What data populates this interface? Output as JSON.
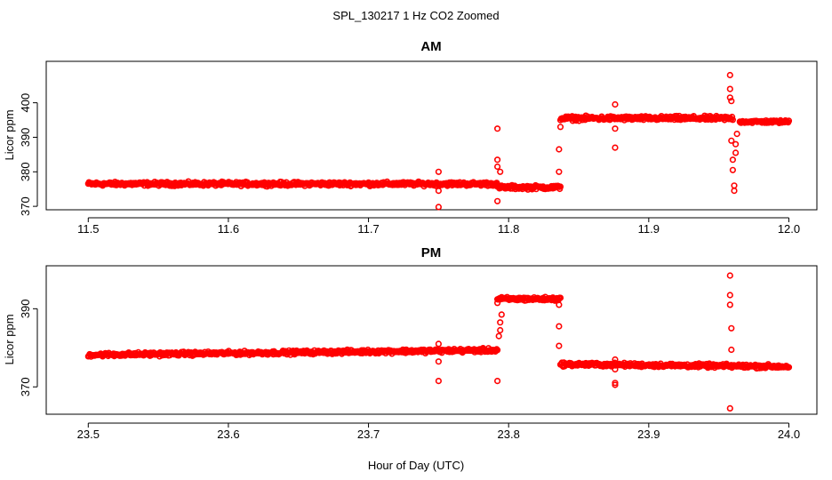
{
  "figure": {
    "suptitle": "SPL_130217  1 Hz CO2 Zoomed",
    "xlabel": "Hour of Day (UTC)"
  },
  "chart_data": [
    {
      "type": "scatter",
      "title": "AM",
      "xlabel": "Hour of Day (UTC)",
      "ylabel": "Licor ppm",
      "xlim": [
        11.47,
        12.02
      ],
      "ylim": [
        369,
        412
      ],
      "xticks": [
        11.5,
        11.6,
        11.7,
        11.8,
        11.9,
        12.0
      ],
      "xtick_labels": [
        "11.5",
        "11.6",
        "11.7",
        "11.8",
        "11.9",
        "12.0"
      ],
      "yticks": [
        370,
        380,
        390,
        400
      ],
      "ytick_labels": [
        "370",
        "380",
        "390",
        "400"
      ],
      "marker_color": "#ff0000",
      "series": [
        {
          "name": "CO2",
          "segments": [
            {
              "x": [
                11.5,
                11.792
              ],
              "y": [
                376.5,
                376.5
              ],
              "spread": 0.8
            },
            {
              "x": [
                11.792,
                11.837
              ],
              "y": [
                375.5,
                375.5
              ],
              "spread": 0.8
            },
            {
              "x": [
                11.837,
                11.96
              ],
              "y": [
                395.5,
                395.5
              ],
              "spread": 0.9
            },
            {
              "x": [
                11.965,
                12.0
              ],
              "y": [
                394.5,
                394.5
              ],
              "spread": 0.6
            }
          ],
          "outliers": [
            [
              11.75,
              380.0
            ],
            [
              11.75,
              374.5
            ],
            [
              11.75,
              369.8
            ],
            [
              11.792,
              392.5
            ],
            [
              11.792,
              383.5
            ],
            [
              11.792,
              381.5
            ],
            [
              11.792,
              371.5
            ],
            [
              11.794,
              380.0
            ],
            [
              11.836,
              386.5
            ],
            [
              11.836,
              380.0
            ],
            [
              11.837,
              393.0
            ],
            [
              11.876,
              399.5
            ],
            [
              11.876,
              392.5
            ],
            [
              11.876,
              387.0
            ],
            [
              11.958,
              408.0
            ],
            [
              11.958,
              404.0
            ],
            [
              11.958,
              401.5
            ],
            [
              11.959,
              400.5
            ],
            [
              11.959,
              389.0
            ],
            [
              11.96,
              383.5
            ],
            [
              11.96,
              380.5
            ],
            [
              11.961,
              376.0
            ],
            [
              11.961,
              374.5
            ],
            [
              11.962,
              385.5
            ],
            [
              11.962,
              388.0
            ],
            [
              11.963,
              391.0
            ]
          ]
        }
      ]
    },
    {
      "type": "scatter",
      "title": "PM",
      "xlabel": "Hour of Day (UTC)",
      "ylabel": "Licor ppm",
      "xlim": [
        23.47,
        24.02
      ],
      "ylim": [
        363,
        401
      ],
      "xticks": [
        23.5,
        23.6,
        23.7,
        23.8,
        23.9,
        24.0
      ],
      "xtick_labels": [
        "23.5",
        "23.6",
        "23.7",
        "23.8",
        "23.9",
        "24.0"
      ],
      "yticks": [
        370,
        390
      ],
      "ytick_labels": [
        "370",
        "390"
      ],
      "marker_color": "#ff0000",
      "series": [
        {
          "name": "CO2",
          "segments": [
            {
              "x": [
                23.5,
                23.792
              ],
              "y": [
                378.2,
                379.4
              ],
              "spread": 0.7
            },
            {
              "x": [
                23.792,
                23.837
              ],
              "y": [
                392.5,
                392.5
              ],
              "spread": 0.7
            },
            {
              "x": [
                23.837,
                24.0
              ],
              "y": [
                375.8,
                375.2
              ],
              "spread": 0.7
            }
          ],
          "outliers": [
            [
              23.75,
              381.0
            ],
            [
              23.75,
              376.5
            ],
            [
              23.75,
              371.5
            ],
            [
              23.792,
              391.5
            ],
            [
              23.792,
              371.5
            ],
            [
              23.793,
              383.0
            ],
            [
              23.794,
              384.5
            ],
            [
              23.794,
              386.5
            ],
            [
              23.795,
              388.5
            ],
            [
              23.836,
              391.0
            ],
            [
              23.836,
              385.5
            ],
            [
              23.836,
              380.5
            ],
            [
              23.876,
              377.0
            ],
            [
              23.876,
              374.5
            ],
            [
              23.876,
              371.0
            ],
            [
              23.876,
              370.5
            ],
            [
              23.958,
              398.5
            ],
            [
              23.958,
              393.5
            ],
            [
              23.958,
              391.0
            ],
            [
              23.959,
              385.0
            ],
            [
              23.959,
              379.5
            ],
            [
              23.958,
              364.5
            ]
          ]
        }
      ]
    }
  ]
}
